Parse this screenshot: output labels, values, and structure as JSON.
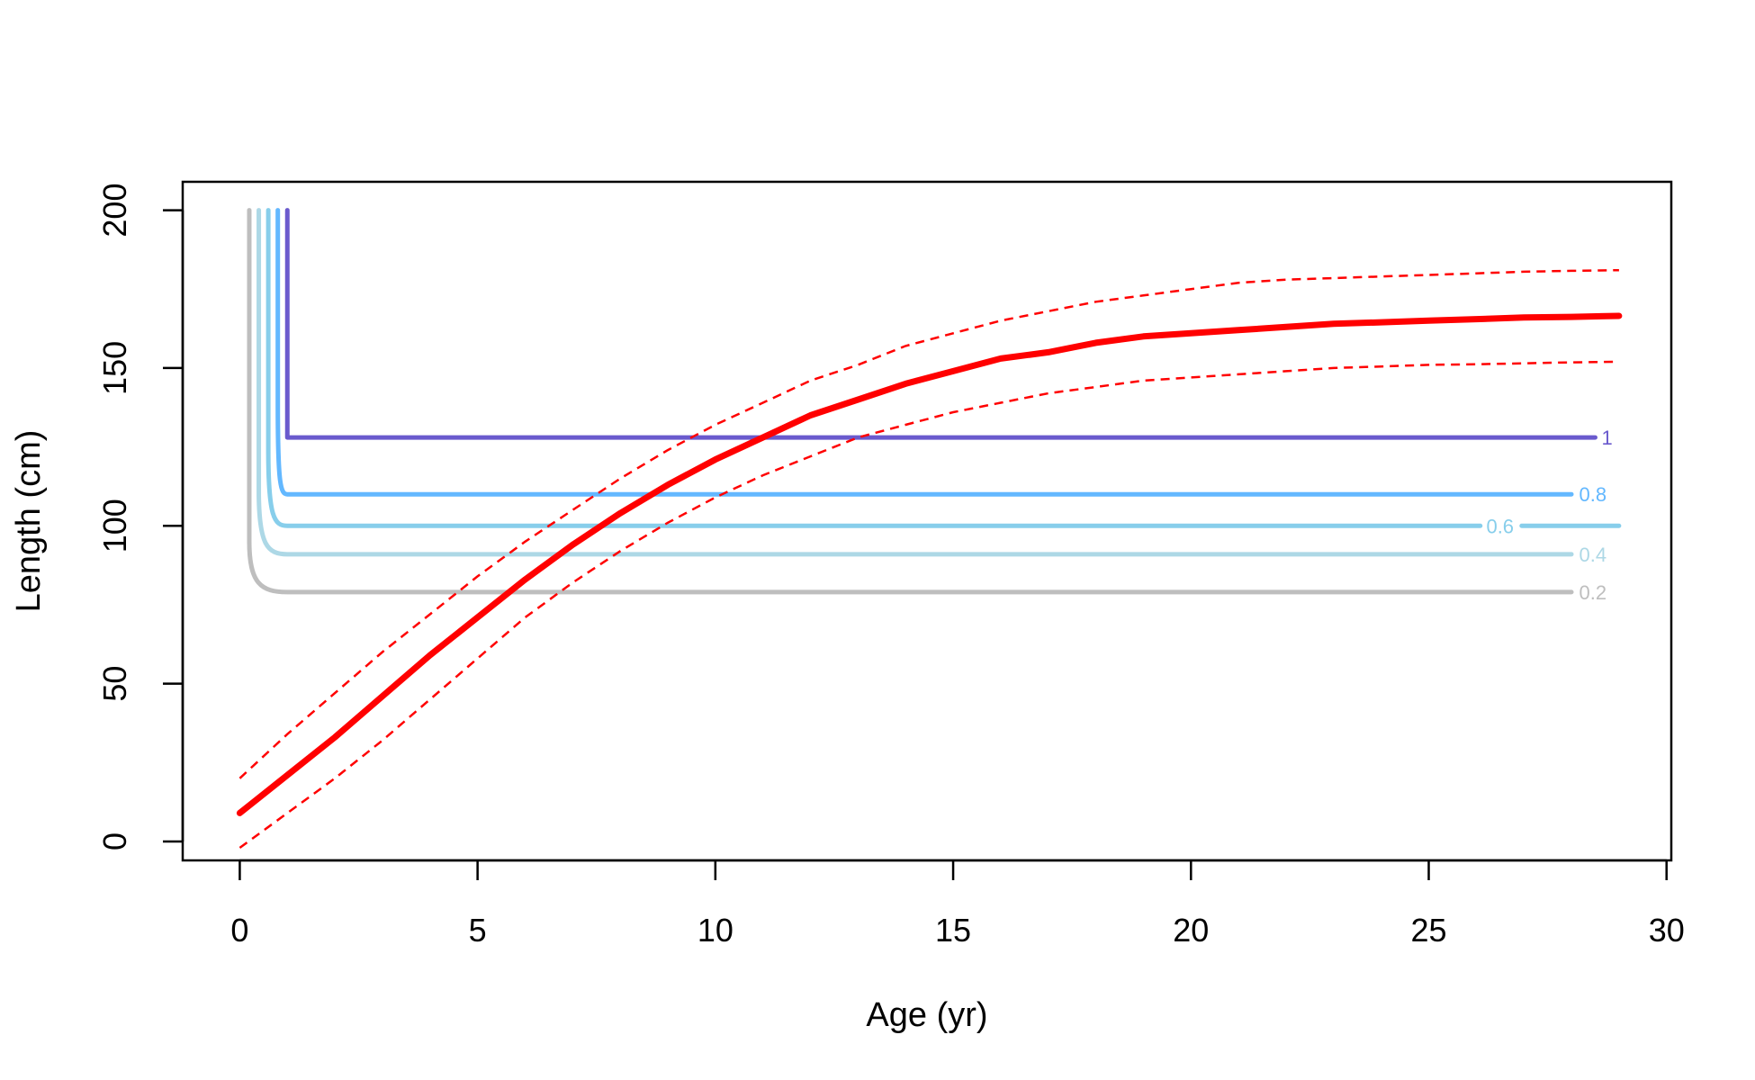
{
  "chart_data": {
    "type": "line",
    "title": "",
    "xlabel": "Age (yr)",
    "ylabel": "Length (cm)",
    "xlim": [
      -1.2,
      30.1
    ],
    "ylim": [
      -6,
      209
    ],
    "x_ticks": [
      0,
      5,
      10,
      15,
      20,
      25,
      30
    ],
    "y_ticks": [
      0,
      50,
      100,
      150,
      200
    ],
    "x_tick_labels": [
      "0",
      "5",
      "10",
      "15",
      "20",
      "25",
      "30"
    ],
    "y_tick_labels": [
      "0",
      "50",
      "100",
      "150",
      "200"
    ],
    "grid": false,
    "legend": "none",
    "growth_curve": {
      "color": "#ff0000",
      "x": [
        0,
        1,
        2,
        3,
        4,
        5,
        6,
        7,
        8,
        9,
        10,
        11,
        12,
        13,
        14,
        15,
        16,
        17,
        18,
        19,
        20,
        21,
        22,
        23,
        24,
        25,
        26,
        27,
        28,
        29
      ],
      "mean": [
        9,
        21,
        33,
        46,
        59,
        71,
        83,
        94,
        104,
        113,
        121,
        128,
        135,
        140,
        145,
        149,
        153,
        155,
        158,
        160,
        161,
        162,
        163,
        164,
        164.5,
        165,
        165.5,
        166,
        166.2,
        166.5
      ],
      "upper": [
        20,
        34,
        47,
        60,
        72,
        84,
        95,
        105,
        115,
        124,
        132,
        139,
        146,
        151,
        157,
        161,
        165,
        168,
        171,
        173,
        175,
        177,
        178,
        178.5,
        179,
        179.5,
        180,
        180.5,
        180.8,
        181
      ],
      "lower": [
        -2,
        9,
        20,
        32,
        45,
        58,
        71,
        82,
        92,
        101,
        109,
        116,
        122,
        128,
        132,
        136,
        139,
        142,
        144,
        146,
        147,
        148,
        149,
        150,
        150.5,
        151,
        151.2,
        151.5,
        151.8,
        152
      ]
    },
    "contours": [
      {
        "label": "0.2",
        "color": "#bebebe",
        "x_left": 0.2,
        "x_corner": 1.0,
        "y": 79,
        "x_end": 28.0,
        "label_x": 28.45,
        "label_gap": false,
        "bend": 0.4
      },
      {
        "label": "0.4",
        "color": "#add8e6",
        "x_left": 0.4,
        "x_corner": 1.0,
        "y": 91,
        "x_end": 28.0,
        "label_x": 28.45,
        "label_gap": false,
        "bend": 0.5
      },
      {
        "label": "0.6",
        "color": "#87ceeb",
        "x_left": 0.6,
        "x_corner": 1.0,
        "y": 100,
        "x_end": 29.0,
        "label_x": 26.5,
        "label_gap": true,
        "bend": 0.6
      },
      {
        "label": "0.8",
        "color": "#63b8ff",
        "x_left": 0.8,
        "x_corner": 1.0,
        "y": 110,
        "x_end": 28.0,
        "label_x": 28.45,
        "label_gap": false,
        "bend": 0.7
      },
      {
        "label": "1",
        "color": "#6a5acd",
        "x_left": 1.0,
        "x_corner": 1.0,
        "y": 128,
        "x_end": 28.5,
        "label_x": 28.75,
        "label_gap": false,
        "bend": 0.0
      }
    ]
  }
}
